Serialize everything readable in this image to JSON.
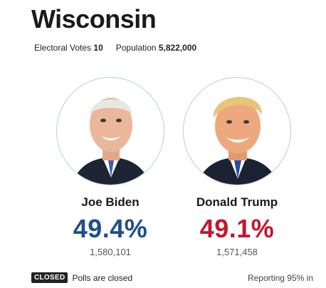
{
  "state": {
    "name": "Wisconsin",
    "electoral_votes_label": "Electoral Votes",
    "electoral_votes": "10",
    "population_label": "Population",
    "population": "5,822,000"
  },
  "candidates": [
    {
      "name": "Joe Biden",
      "percent": "49.4%",
      "votes": "1,580,101",
      "color": "#1f4e8a"
    },
    {
      "name": "Donald Trump",
      "percent": "49.1%",
      "votes": "1,571,458",
      "color": "#c3162c"
    }
  ],
  "status": {
    "badge": "CLOSED",
    "text": "Polls are closed",
    "reporting": "Reporting 95% in"
  }
}
